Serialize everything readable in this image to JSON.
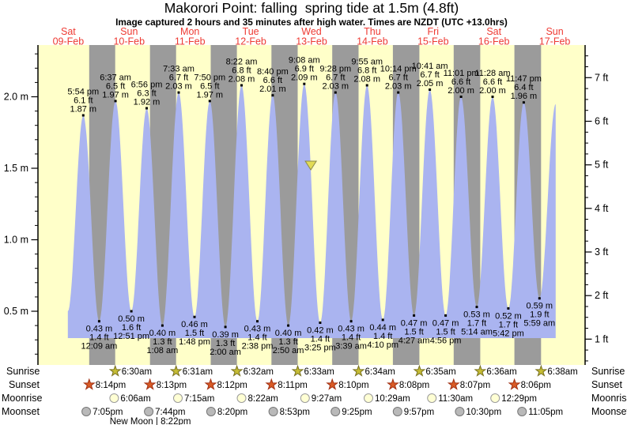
{
  "chart_data": {
    "type": "area",
    "title": "Makorori Point: falling  spring tide at 1.5m (4.8ft)",
    "subtitle": "Image captured 2 hours and 35 minutes after high water. Times are NZDT (UTC +13.0hrs)",
    "days": [
      {
        "label": "Sat",
        "date": "09-Feb"
      },
      {
        "label": "Sun",
        "date": "10-Feb"
      },
      {
        "label": "Mon",
        "date": "11-Feb"
      },
      {
        "label": "Tue",
        "date": "12-Feb"
      },
      {
        "label": "Wed",
        "date": "13-Feb"
      },
      {
        "label": "Thu",
        "date": "14-Feb"
      },
      {
        "label": "Fri",
        "date": "15-Feb"
      },
      {
        "label": "Sat",
        "date": "16-Feb"
      },
      {
        "label": "Sun",
        "date": "17-Feb"
      }
    ],
    "y_axis_left": {
      "unit": "m",
      "ticks": [
        {
          "label": "0.5 m",
          "value": 0.5
        },
        {
          "label": "1.0 m",
          "value": 1.0
        },
        {
          "label": "1.5 m",
          "value": 1.5
        },
        {
          "label": "2.0 m",
          "value": 2.0
        }
      ]
    },
    "y_axis_right": {
      "unit": "ft",
      "ticks": [
        {
          "label": "1 ft",
          "value": 1
        },
        {
          "label": "2 ft",
          "value": 2
        },
        {
          "label": "3 ft",
          "value": 3
        },
        {
          "label": "4 ft",
          "value": 4
        },
        {
          "label": "5 ft",
          "value": 5
        },
        {
          "label": "6 ft",
          "value": 6
        },
        {
          "label": "7 ft",
          "value": 7
        }
      ]
    },
    "tides": [
      {
        "day": 0,
        "type": "high",
        "time": "5:54 pm",
        "t": 17.9,
        "ft": "6.1 ft",
        "m": "1.87 m",
        "height_m": 1.87
      },
      {
        "day": 1,
        "type": "low",
        "time": "12:09 am",
        "t": 0.15,
        "ft": "1.4 ft",
        "m": "0.43 m",
        "height_m": 0.43
      },
      {
        "day": 1,
        "type": "high",
        "time": "6:37 am",
        "t": 6.617,
        "ft": "6.5 ft",
        "m": "1.97 m",
        "height_m": 1.97
      },
      {
        "day": 1,
        "type": "low",
        "time": "12:51 pm",
        "t": 12.85,
        "ft": "1.6 ft",
        "m": "0.50 m",
        "height_m": 0.5
      },
      {
        "day": 1,
        "type": "high",
        "time": "6:56 pm",
        "t": 18.933,
        "ft": "6.3 ft",
        "m": "1.92 m",
        "height_m": 1.92
      },
      {
        "day": 2,
        "type": "low",
        "time": "1:08 am",
        "t": 1.133,
        "ft": "1.3 ft",
        "m": "0.40 m",
        "height_m": 0.4
      },
      {
        "day": 2,
        "type": "high",
        "time": "7:33 am",
        "t": 7.55,
        "ft": "6.7 ft",
        "m": "2.03 m",
        "height_m": 2.03
      },
      {
        "day": 2,
        "type": "low",
        "time": "1:48 pm",
        "t": 13.8,
        "ft": "1.5 ft",
        "m": "0.46 m",
        "height_m": 0.46
      },
      {
        "day": 2,
        "type": "high",
        "time": "7:50 pm",
        "t": 19.833,
        "ft": "6.5 ft",
        "m": "1.97 m",
        "height_m": 1.97
      },
      {
        "day": 3,
        "type": "low",
        "time": "2:00 am",
        "t": 2.0,
        "ft": "1.3 ft",
        "m": "0.39 m",
        "height_m": 0.39
      },
      {
        "day": 3,
        "type": "high",
        "time": "8:22 am",
        "t": 8.367,
        "ft": "6.8 ft",
        "m": "2.08 m",
        "height_m": 2.08
      },
      {
        "day": 3,
        "type": "low",
        "time": "2:38 pm",
        "t": 14.633,
        "ft": "1.4 ft",
        "m": "0.43 m",
        "height_m": 0.43
      },
      {
        "day": 3,
        "type": "high",
        "time": "8:40 pm",
        "t": 20.667,
        "ft": "6.6 ft",
        "m": "2.01 m",
        "height_m": 2.01
      },
      {
        "day": 4,
        "type": "low",
        "time": "2:50 am",
        "t": 2.833,
        "ft": "1.3 ft",
        "m": "0.40 m",
        "height_m": 0.4
      },
      {
        "day": 4,
        "type": "high",
        "time": "9:08 am",
        "t": 9.133,
        "ft": "6.9 ft",
        "m": "2.09 m",
        "height_m": 2.09
      },
      {
        "day": 4,
        "type": "low",
        "time": "3:25 pm",
        "t": 15.417,
        "ft": "1.4 ft",
        "m": "0.42 m",
        "height_m": 0.42
      },
      {
        "day": 4,
        "type": "high",
        "time": "9:28 pm",
        "t": 21.467,
        "ft": "6.7 ft",
        "m": "2.03 m",
        "height_m": 2.03
      },
      {
        "day": 5,
        "type": "low",
        "time": "3:39 am",
        "t": 3.65,
        "ft": "1.4 ft",
        "m": "0.43 m",
        "height_m": 0.43
      },
      {
        "day": 5,
        "type": "high",
        "time": "9:55 am",
        "t": 9.917,
        "ft": "6.8 ft",
        "m": "2.08 m",
        "height_m": 2.08
      },
      {
        "day": 5,
        "type": "low",
        "time": "4:10 pm",
        "t": 16.167,
        "ft": "1.4 ft",
        "m": "0.44 m",
        "height_m": 0.44
      },
      {
        "day": 5,
        "type": "high",
        "time": "10:14 pm",
        "t": 22.233,
        "ft": "6.7 ft",
        "m": "2.03 m",
        "height_m": 2.03
      },
      {
        "day": 6,
        "type": "low",
        "time": "4:27 am",
        "t": 4.45,
        "ft": "1.5 ft",
        "m": "0.47 m",
        "height_m": 0.47
      },
      {
        "day": 6,
        "type": "high",
        "time": "10:41 am",
        "t": 10.683,
        "ft": "6.7 ft",
        "m": "2.05 m",
        "height_m": 2.05
      },
      {
        "day": 6,
        "type": "low",
        "time": "4:56 pm",
        "t": 16.933,
        "ft": "1.5 ft",
        "m": "0.47 m",
        "height_m": 0.47
      },
      {
        "day": 6,
        "type": "high",
        "time": "11:01 pm",
        "t": 23.017,
        "ft": "6.6 ft",
        "m": "2.00 m",
        "height_m": 2.0
      },
      {
        "day": 7,
        "type": "low",
        "time": "5:14 am",
        "t": 5.233,
        "ft": "1.7 ft",
        "m": "0.53 m",
        "height_m": 0.53
      },
      {
        "day": 7,
        "type": "high",
        "time": "11:28 am",
        "t": 11.467,
        "ft": "6.6 ft",
        "m": "2.00 m",
        "height_m": 2.0
      },
      {
        "day": 7,
        "type": "low",
        "time": "5:42 pm",
        "t": 17.7,
        "ft": "1.7 ft",
        "m": "0.52 m",
        "height_m": 0.52
      },
      {
        "day": 7,
        "type": "high",
        "time": "11:47 pm",
        "t": 23.783,
        "ft": "6.4 ft",
        "m": "1.96 m",
        "height_m": 1.96
      },
      {
        "day": 8,
        "type": "low",
        "time": "5:59 am",
        "t": 5.983,
        "ft": "1.9 ft",
        "m": "0.59 m",
        "height_m": 0.59
      }
    ],
    "curve_edges": {
      "start": {
        "day": 0,
        "t": 11.8,
        "height_m": 0.5
      },
      "end": {
        "day": 8,
        "t": 12.4,
        "height_m": 1.95
      }
    },
    "capture_marker": {
      "day": 4,
      "t": 11.72,
      "height_m": 1.5
    },
    "astro": {
      "sunrise": {
        "label": "Sunrise",
        "entries": [
          {
            "day": 1,
            "t": 6.5,
            "time": "6:30am"
          },
          {
            "day": 2,
            "t": 6.517,
            "time": "6:31am"
          },
          {
            "day": 3,
            "t": 6.533,
            "time": "6:32am"
          },
          {
            "day": 4,
            "t": 6.55,
            "time": "6:33am"
          },
          {
            "day": 5,
            "t": 6.567,
            "time": "6:34am"
          },
          {
            "day": 6,
            "t": 6.583,
            "time": "6:35am"
          },
          {
            "day": 7,
            "t": 6.6,
            "time": "6:36am"
          },
          {
            "day": 8,
            "t": 6.633,
            "time": "6:38am"
          }
        ]
      },
      "sunset": {
        "label": "Sunset",
        "entries": [
          {
            "day": 0,
            "t": 20.233,
            "time": "8:14pm"
          },
          {
            "day": 1,
            "t": 20.217,
            "time": "8:13pm"
          },
          {
            "day": 2,
            "t": 20.2,
            "time": "8:12pm"
          },
          {
            "day": 3,
            "t": 20.183,
            "time": "8:11pm"
          },
          {
            "day": 4,
            "t": 20.167,
            "time": "8:10pm"
          },
          {
            "day": 5,
            "t": 20.133,
            "time": "8:08pm"
          },
          {
            "day": 6,
            "t": 20.117,
            "time": "8:07pm"
          },
          {
            "day": 7,
            "t": 20.1,
            "time": "8:06pm"
          }
        ]
      },
      "moonrise": {
        "label": "Moonrise",
        "entries": [
          {
            "day": 1,
            "t": 6.1,
            "time": "6:06am"
          },
          {
            "day": 2,
            "t": 7.25,
            "time": "7:15am"
          },
          {
            "day": 3,
            "t": 8.367,
            "time": "8:22am"
          },
          {
            "day": 4,
            "t": 9.45,
            "time": "9:27am"
          },
          {
            "day": 5,
            "t": 10.483,
            "time": "10:29am"
          },
          {
            "day": 6,
            "t": 11.5,
            "time": "11:30am"
          },
          {
            "day": 7,
            "t": 12.483,
            "time": "12:29pm"
          }
        ]
      },
      "moonset": {
        "label": "Moonset",
        "entries": [
          {
            "day": 0,
            "t": 19.083,
            "time": "7:05pm"
          },
          {
            "day": 1,
            "t": 19.733,
            "time": "7:44pm"
          },
          {
            "day": 2,
            "t": 20.333,
            "time": "8:20pm"
          },
          {
            "day": 3,
            "t": 20.883,
            "time": "8:53pm"
          },
          {
            "day": 4,
            "t": 21.417,
            "time": "9:25pm"
          },
          {
            "day": 5,
            "t": 21.95,
            "time": "9:57pm"
          },
          {
            "day": 6,
            "t": 22.5,
            "time": "10:30pm"
          },
          {
            "day": 7,
            "t": 23.083,
            "time": "11:05pm"
          }
        ]
      },
      "new_moon": {
        "label": "New Moon | 8:22pm",
        "day": 1,
        "t": 20.37
      }
    },
    "colors": {
      "day_bg": "#ffffc9",
      "night_band": "#9b9b9b",
      "tide_fill": "#aab4f0",
      "date_label": "#ee3a33",
      "sunrise_star": "#c6bd35",
      "sunrise_star_stroke": "#77701e",
      "sunset_star": "#d95b25",
      "sunset_star_stroke": "#a03014",
      "moonrise_circle": "#ffffd4",
      "moonrise_circle_stroke": "#9a9a9a",
      "moonset_circle": "#b9b9b9",
      "moonset_circle_stroke": "#777777",
      "marker_fill": "#e2dc55",
      "marker_stroke": "#88884a"
    }
  }
}
